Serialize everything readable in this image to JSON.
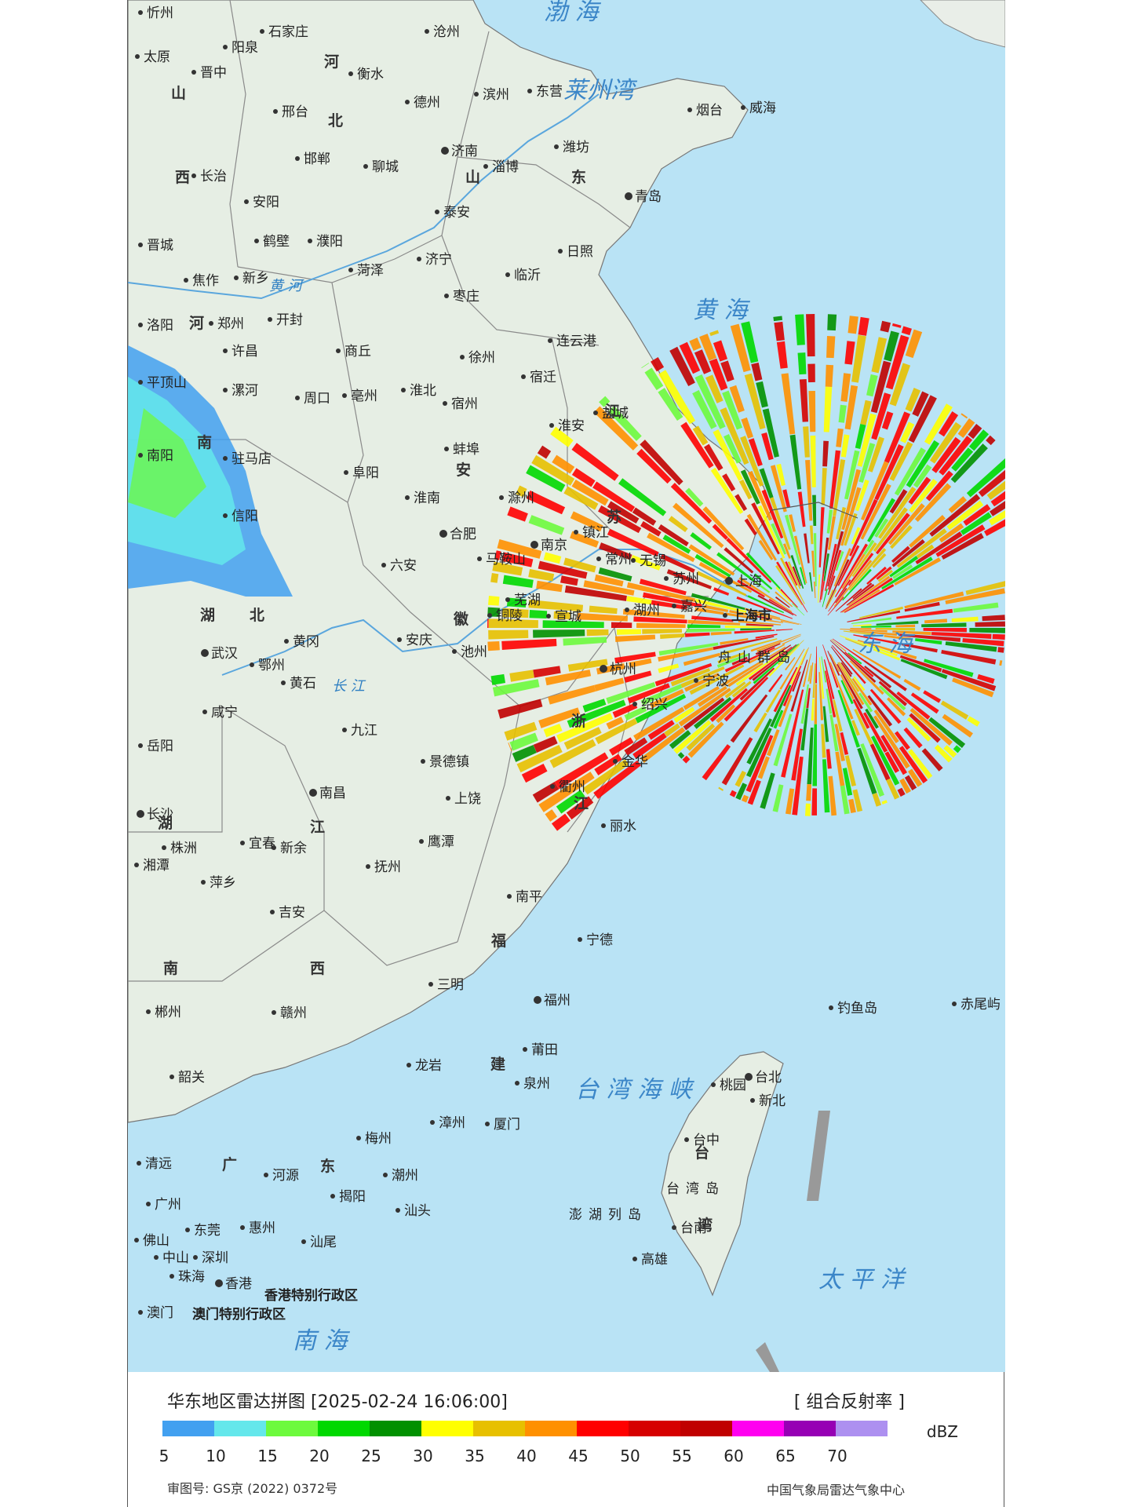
{
  "labels": {
    "cities": [
      {
        "id": "xinzhou",
        "text": "忻州"
      },
      {
        "id": "shijiazhuang",
        "text": "石家庄"
      },
      {
        "id": "cangzhou",
        "text": "沧州"
      },
      {
        "id": "yangquan",
        "text": "阳泉"
      },
      {
        "id": "taiyuan",
        "text": "太原"
      },
      {
        "id": "jinzhong",
        "text": "晋中"
      },
      {
        "id": "hengshui",
        "text": "衡水"
      },
      {
        "id": "xingtai",
        "text": "邢台"
      },
      {
        "id": "dezhou",
        "text": "德州"
      },
      {
        "id": "binzhou",
        "text": "滨州"
      },
      {
        "id": "dongying",
        "text": "东营"
      },
      {
        "id": "yantai",
        "text": "烟台"
      },
      {
        "id": "weihai",
        "text": "威海"
      },
      {
        "id": "handan",
        "text": "邯郸"
      },
      {
        "id": "liaocheng",
        "text": "聊城"
      },
      {
        "id": "jinan",
        "text": "济南"
      },
      {
        "id": "zibo",
        "text": "淄博"
      },
      {
        "id": "weifang",
        "text": "潍坊"
      },
      {
        "id": "changzhi",
        "text": "长治"
      },
      {
        "id": "anyang",
        "text": "安阳"
      },
      {
        "id": "taian",
        "text": "泰安"
      },
      {
        "id": "qingdao",
        "text": "青岛"
      },
      {
        "id": "jincheng",
        "text": "晋城"
      },
      {
        "id": "hebi",
        "text": "鹤壁"
      },
      {
        "id": "puyang",
        "text": "濮阳"
      },
      {
        "id": "jining",
        "text": "济宁"
      },
      {
        "id": "rizhao",
        "text": "日照"
      },
      {
        "id": "heze",
        "text": "菏泽"
      },
      {
        "id": "linyi",
        "text": "临沂"
      },
      {
        "id": "jiaozuo",
        "text": "焦作"
      },
      {
        "id": "xinxiang",
        "text": "新乡"
      },
      {
        "id": "zaozhuang",
        "text": "枣庄"
      },
      {
        "id": "luoyang",
        "text": "洛阳"
      },
      {
        "id": "zhengzhou",
        "text": "郑州"
      },
      {
        "id": "kaifeng",
        "text": "开封"
      },
      {
        "id": "lianyungang",
        "text": "连云港"
      },
      {
        "id": "xuchang",
        "text": "许昌"
      },
      {
        "id": "shangqiu",
        "text": "商丘"
      },
      {
        "id": "xuzhou",
        "text": "徐州"
      },
      {
        "id": "pingdingshan",
        "text": "平顶山"
      },
      {
        "id": "luohe",
        "text": "漯河"
      },
      {
        "id": "zhoukou",
        "text": "周口"
      },
      {
        "id": "bozhou",
        "text": "亳州"
      },
      {
        "id": "huaibei",
        "text": "淮北"
      },
      {
        "id": "suzhou_ah",
        "text": "宿州"
      },
      {
        "id": "suqian",
        "text": "宿迁"
      },
      {
        "id": "huaian",
        "text": "淮安"
      },
      {
        "id": "yancheng",
        "text": "盐城"
      },
      {
        "id": "nanyang",
        "text": "南阳"
      },
      {
        "id": "zhumadian",
        "text": "驻马店"
      },
      {
        "id": "bengbu",
        "text": "蚌埠"
      },
      {
        "id": "fuyang",
        "text": "阜阳"
      },
      {
        "id": "huainan",
        "text": "淮南"
      },
      {
        "id": "chuzhou",
        "text": "滁州"
      },
      {
        "id": "xinyang",
        "text": "信阳"
      },
      {
        "id": "hefei",
        "text": "合肥"
      },
      {
        "id": "nanjing",
        "text": "南京"
      },
      {
        "id": "zhenjiang",
        "text": "镇江"
      },
      {
        "id": "liuan",
        "text": "六安"
      },
      {
        "id": "maanshan",
        "text": "马鞍山"
      },
      {
        "id": "changzhou",
        "text": "常州"
      },
      {
        "id": "wuxi",
        "text": "无锡"
      },
      {
        "id": "suzhou",
        "text": "苏州"
      },
      {
        "id": "shanghai_c",
        "text": "上海"
      },
      {
        "id": "shanghai",
        "text": "上海市"
      },
      {
        "id": "wuhu",
        "text": "芜湖"
      },
      {
        "id": "tongling",
        "text": "铜陵"
      },
      {
        "id": "xuancheng",
        "text": "宣城"
      },
      {
        "id": "huzhou",
        "text": "湖州"
      },
      {
        "id": "jiaxing",
        "text": "嘉兴"
      },
      {
        "id": "zhoushan",
        "text": "舟山群岛"
      },
      {
        "id": "wuhan",
        "text": "武汉"
      },
      {
        "id": "huanggang",
        "text": "黄冈"
      },
      {
        "id": "ezhou",
        "text": "鄂州"
      },
      {
        "id": "huangshi",
        "text": "黄石"
      },
      {
        "id": "anqing",
        "text": "安庆"
      },
      {
        "id": "chizhou",
        "text": "池州"
      },
      {
        "id": "hangzhou",
        "text": "杭州"
      },
      {
        "id": "shaoxing",
        "text": "绍兴"
      },
      {
        "id": "ningbo",
        "text": "宁波"
      },
      {
        "id": "xianning",
        "text": "咸宁"
      },
      {
        "id": "jiujiang",
        "text": "九江"
      },
      {
        "id": "yueyang",
        "text": "岳阳"
      },
      {
        "id": "jingdezhen",
        "text": "景德镇"
      },
      {
        "id": "jinhua",
        "text": "金华"
      },
      {
        "id": "nanchang",
        "text": "南昌"
      },
      {
        "id": "shangrao",
        "text": "上饶"
      },
      {
        "id": "quzhou",
        "text": "衢州"
      },
      {
        "id": "changsha",
        "text": "长沙"
      },
      {
        "id": "lishui",
        "text": "丽水"
      },
      {
        "id": "zhuzhou",
        "text": "株洲"
      },
      {
        "id": "yichun",
        "text": "宜春"
      },
      {
        "id": "xinyu",
        "text": "新余"
      },
      {
        "id": "yingtan",
        "text": "鹰潭"
      },
      {
        "id": "xiangtan",
        "text": "湘潭"
      },
      {
        "id": "fuzhou_jx",
        "text": "抚州"
      },
      {
        "id": "pingxiang",
        "text": "萍乡"
      },
      {
        "id": "nanping",
        "text": "南平"
      },
      {
        "id": "ji_an",
        "text": "吉安"
      },
      {
        "id": "ningde",
        "text": "宁德"
      },
      {
        "id": "sanming",
        "text": "三明"
      },
      {
        "id": "fuzhou",
        "text": "福州"
      },
      {
        "id": "chenzhou",
        "text": "郴州"
      },
      {
        "id": "ganzhou",
        "text": "赣州"
      },
      {
        "id": "diaoyudao",
        "text": "钓鱼岛"
      },
      {
        "id": "chiweiyu",
        "text": "赤尾屿"
      },
      {
        "id": "putian",
        "text": "莆田"
      },
      {
        "id": "longyan",
        "text": "龙岩"
      },
      {
        "id": "quanzhou",
        "text": "泉州"
      },
      {
        "id": "shaoguan",
        "text": "韶关"
      },
      {
        "id": "taoyuan",
        "text": "桃园"
      },
      {
        "id": "taibei",
        "text": "台北"
      },
      {
        "id": "xinbei",
        "text": "新北"
      },
      {
        "id": "zhangzhou",
        "text": "漳州"
      },
      {
        "id": "xiamen",
        "text": "厦门"
      },
      {
        "id": "meizhou",
        "text": "梅州"
      },
      {
        "id": "taizhong",
        "text": "台中"
      },
      {
        "id": "qingyuan",
        "text": "清远"
      },
      {
        "id": "heyuan",
        "text": "河源"
      },
      {
        "id": "chaozhou",
        "text": "潮州"
      },
      {
        "id": "jieyang",
        "text": "揭阳"
      },
      {
        "id": "shantou",
        "text": "汕头"
      },
      {
        "id": "guangzhou",
        "text": "广州"
      },
      {
        "id": "penghu",
        "text": "澎湖列岛"
      },
      {
        "id": "tainan",
        "text": "台南"
      },
      {
        "id": "dongguan",
        "text": "东莞"
      },
      {
        "id": "huizhou",
        "text": "惠州"
      },
      {
        "id": "shanwei",
        "text": "汕尾"
      },
      {
        "id": "foshan",
        "text": "佛山"
      },
      {
        "id": "gaoxiong",
        "text": "高雄"
      },
      {
        "id": "zhongshan",
        "text": "中山"
      },
      {
        "id": "shenzhen",
        "text": "深圳"
      },
      {
        "id": "zhuhai",
        "text": "珠海"
      },
      {
        "id": "xianggang",
        "text": "香港"
      },
      {
        "id": "aomen",
        "text": "澳门"
      },
      {
        "id": "hk_sar",
        "text": "香港特别行政区"
      },
      {
        "id": "mo_sar",
        "text": "澳门特别行政区"
      },
      {
        "id": "taiwan_dao",
        "text": "台湾岛"
      }
    ],
    "provinces": [
      {
        "id": "hebei",
        "chars": [
          "河",
          "北"
        ]
      },
      {
        "id": "shanxi",
        "chars": [
          "山",
          "西"
        ]
      },
      {
        "id": "shandong",
        "chars": [
          "山",
          "东"
        ]
      },
      {
        "id": "henan",
        "chars": [
          "河",
          "南"
        ]
      },
      {
        "id": "jiangsu",
        "chars": [
          "江",
          "苏"
        ]
      },
      {
        "id": "anhui",
        "chars": [
          "安",
          "徽"
        ]
      },
      {
        "id": "hubei",
        "chars": [
          "湖",
          "北"
        ]
      },
      {
        "id": "zhejiang",
        "chars": [
          "浙",
          "江"
        ]
      },
      {
        "id": "jiangxi",
        "chars": [
          "江",
          "西"
        ]
      },
      {
        "id": "hunan",
        "chars": [
          "湖",
          "南"
        ]
      },
      {
        "id": "fujian",
        "chars": [
          "福",
          "建"
        ]
      },
      {
        "id": "guangdong",
        "chars": [
          "广",
          "东"
        ]
      },
      {
        "id": "taiwan",
        "chars": [
          "台",
          "湾"
        ]
      }
    ],
    "seas": [
      {
        "id": "bohai",
        "text": "渤 海"
      },
      {
        "id": "laizhouwan",
        "text": "莱州湾"
      },
      {
        "id": "huanghai",
        "text": "黄 海"
      },
      {
        "id": "donghai",
        "text": "东 海"
      },
      {
        "id": "taiwan_strait",
        "text": "台 湾 海 峡"
      },
      {
        "id": "taipingyang",
        "text": "太 平 洋"
      },
      {
        "id": "nanhai",
        "text": "南 海"
      }
    ],
    "rivers": [
      {
        "id": "huanghe",
        "text": "黄 河"
      },
      {
        "id": "changjiang",
        "text": "长 江"
      }
    ]
  },
  "legend": {
    "title": "华东地区雷达拼图 [2025-02-24 16:06:00]",
    "product": "[ 组合反射率 ]",
    "unit": "dBZ",
    "colors": [
      "#42a0f0",
      "#64e7eb",
      "#6dfa3d",
      "#00d800",
      "#019000",
      "#ffff00",
      "#e7c000",
      "#ff9000",
      "#ff0000",
      "#d60000",
      "#c00000",
      "#ff00f0",
      "#9600b4",
      "#ad90f0"
    ],
    "ticks": [
      "5",
      "10",
      "15",
      "20",
      "25",
      "30",
      "35",
      "40",
      "45",
      "50",
      "55",
      "60",
      "65",
      "70"
    ],
    "approval": "审图号: GS京 (2022) 0372号",
    "source": "中国气象局雷达气象中心"
  }
}
